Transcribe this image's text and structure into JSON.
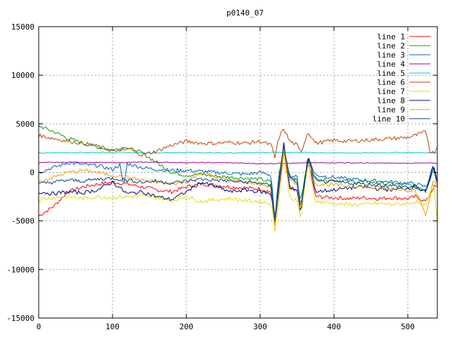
{
  "chart_data": {
    "type": "line",
    "title": "p0140_07",
    "xlabel": "",
    "ylabel": "",
    "xlim": [
      0,
      540
    ],
    "ylim": [
      -15000,
      15000
    ],
    "x_ticks": [
      0,
      100,
      200,
      300,
      400,
      500
    ],
    "y_ticks": [
      -15000,
      -10000,
      -5000,
      0,
      5000,
      10000,
      15000
    ],
    "grid": true,
    "legend_position": "top-right",
    "series": [
      {
        "name": "line 1",
        "color": "#ff0000",
        "x": [
          0,
          20,
          40,
          60,
          80,
          100,
          120,
          140,
          160,
          180,
          200,
          220,
          240,
          260,
          280,
          300,
          315,
          320,
          325,
          332,
          340,
          350,
          355,
          365,
          375,
          400,
          420,
          440,
          460,
          480,
          500,
          510,
          525,
          535,
          540
        ],
        "y": [
          -4500,
          -3500,
          -2000,
          -1500,
          -1200,
          -1000,
          -1200,
          -1500,
          -1800,
          -2000,
          -1500,
          -1200,
          -1300,
          -1500,
          -1600,
          -1700,
          -2000,
          -4500,
          -2000,
          2000,
          -1500,
          -2000,
          -3500,
          1000,
          -2500,
          -2600,
          -2700,
          -2600,
          -2700,
          -2600,
          -2700,
          -2500,
          -3000,
          -1500,
          -1500
        ]
      },
      {
        "name": "line 2",
        "color": "#00a000",
        "x": [
          0,
          20,
          40,
          60,
          80,
          100,
          120,
          140,
          160,
          180,
          200,
          220,
          240,
          260,
          280,
          300,
          315,
          320,
          325,
          332,
          340,
          350,
          355,
          365,
          375,
          400,
          420,
          440,
          460,
          480,
          500,
          510,
          525,
          535,
          540
        ],
        "y": [
          4800,
          4200,
          3500,
          3000,
          2600,
          2300,
          2500,
          2000,
          1000,
          0,
          -300,
          -200,
          -400,
          -500,
          -600,
          -700,
          -1000,
          -4800,
          -800,
          2800,
          -400,
          -900,
          -3000,
          1500,
          -700,
          -800,
          -900,
          -1000,
          -1100,
          -1200,
          -1300,
          -1400,
          -1800,
          500,
          -1000
        ]
      },
      {
        "name": "line 3",
        "color": "#0060c0",
        "x": [
          0,
          20,
          40,
          60,
          80,
          100,
          110,
          115,
          120,
          140,
          160,
          180,
          200,
          220,
          240,
          260,
          280,
          300,
          315,
          320,
          325,
          332,
          340,
          350,
          355,
          365,
          375,
          400,
          420,
          440,
          460,
          480,
          500,
          510,
          525,
          535,
          540
        ],
        "y": [
          0,
          500,
          1000,
          800,
          700,
          300,
          800,
          -1500,
          900,
          500,
          300,
          200,
          200,
          100,
          0,
          -100,
          -200,
          0,
          -300,
          -5000,
          -500,
          2500,
          -300,
          -500,
          -3500,
          1500,
          -300,
          -500,
          -700,
          -800,
          -900,
          -1000,
          -1100,
          -1200,
          -1500,
          800,
          -1000
        ]
      },
      {
        "name": "line 4",
        "color": "#a000a0",
        "x": [
          0,
          50,
          100,
          150,
          200,
          250,
          300,
          350,
          400,
          450,
          500,
          540
        ],
        "y": [
          1000,
          1050,
          1000,
          1050,
          1000,
          1000,
          900,
          950,
          1000,
          950,
          950,
          950
        ]
      },
      {
        "name": "line 5",
        "color": "#00c8c8",
        "x": [
          0,
          50,
          100,
          150,
          200,
          250,
          300,
          350,
          400,
          450,
          500,
          540
        ],
        "y": [
          2000,
          2050,
          2050,
          2000,
          2050,
          2000,
          2050,
          2050,
          2000,
          2000,
          2050,
          2000
        ]
      },
      {
        "name": "line 6",
        "color": "#c04000",
        "x": [
          0,
          20,
          40,
          60,
          80,
          100,
          120,
          140,
          160,
          180,
          200,
          220,
          240,
          260,
          280,
          300,
          315,
          320,
          325,
          332,
          340,
          350,
          355,
          365,
          375,
          400,
          420,
          440,
          460,
          480,
          500,
          510,
          525,
          530,
          535,
          540
        ],
        "y": [
          3800,
          3500,
          3200,
          3000,
          2700,
          2200,
          2500,
          1800,
          2200,
          2800,
          3200,
          3000,
          3000,
          3100,
          3000,
          3200,
          2800,
          1500,
          3500,
          4500,
          3200,
          2800,
          2000,
          4200,
          3000,
          3300,
          3200,
          3300,
          3400,
          3500,
          3600,
          3800,
          4200,
          2200,
          2000,
          2600
        ]
      },
      {
        "name": "line 7",
        "color": "#e0e000",
        "x": [
          0,
          20,
          40,
          60,
          80,
          100,
          120,
          140,
          160,
          180,
          200,
          220,
          240,
          260,
          280,
          300,
          315,
          320,
          325,
          332,
          340,
          350,
          355,
          365,
          375,
          400,
          420,
          440,
          460,
          480,
          500,
          510,
          525,
          535,
          540
        ],
        "y": [
          -2800,
          -2600,
          -2500,
          -2700,
          -2500,
          -2600,
          -2500,
          -2400,
          -2600,
          -2900,
          -2500,
          -3000,
          -2800,
          -2700,
          -2900,
          -3000,
          -3200,
          -6000,
          -3000,
          2000,
          -2500,
          -3000,
          -4800,
          1200,
          -3000,
          -3200,
          -3300,
          -3300,
          -3200,
          -3300,
          -3200,
          -3000,
          -3500,
          -1000,
          -5200
        ]
      },
      {
        "name": "line 8",
        "color": "#000080",
        "x": [
          0,
          20,
          40,
          60,
          80,
          100,
          120,
          140,
          160,
          180,
          200,
          220,
          240,
          260,
          280,
          300,
          315,
          320,
          325,
          332,
          340,
          350,
          355,
          365,
          375,
          400,
          420,
          440,
          460,
          480,
          500,
          510,
          525,
          535,
          540
        ],
        "y": [
          -2000,
          -2200,
          -2000,
          -2100,
          -1800,
          -1000,
          -2200,
          -2000,
          -2500,
          -2800,
          -2000,
          -1000,
          -1500,
          -2000,
          -1800,
          -2000,
          -2200,
          -5200,
          -2000,
          3000,
          -1500,
          -2000,
          -4200,
          1800,
          -2000,
          -1800,
          -1600,
          -1500,
          -1700,
          -1800,
          -1600,
          -1500,
          -2000,
          600,
          -1200
        ]
      },
      {
        "name": "line 9",
        "color": "#f0a000",
        "x": [
          0,
          20,
          40,
          60,
          80,
          100,
          120,
          140,
          160,
          180,
          200,
          220,
          240,
          260,
          280,
          300,
          315,
          320,
          325,
          332,
          340,
          350,
          355,
          365,
          375,
          400,
          420,
          440,
          460,
          480,
          500,
          510,
          525,
          535,
          540
        ],
        "y": [
          -1000,
          -500,
          0,
          200,
          0,
          -300,
          -500,
          -800,
          -1000,
          -1200,
          -1000,
          0,
          -500,
          -800,
          -1000,
          -1200,
          -1500,
          -5500,
          -1500,
          2500,
          -800,
          -1200,
          -4000,
          1200,
          -1200,
          -1300,
          -1400,
          -1500,
          -1600,
          -1700,
          -1800,
          -1800,
          -4500,
          -500,
          -1500
        ]
      },
      {
        "name": "line 10",
        "color": "#004090",
        "x": [
          0,
          20,
          40,
          60,
          80,
          100,
          120,
          140,
          160,
          180,
          200,
          220,
          240,
          260,
          280,
          300,
          315,
          320,
          325,
          332,
          340,
          350,
          355,
          365,
          375,
          400,
          420,
          440,
          460,
          480,
          500,
          510,
          525,
          535,
          540
        ],
        "y": [
          -1200,
          -1000,
          -800,
          -900,
          -700,
          -600,
          -800,
          -1000,
          -900,
          -1100,
          -900,
          -700,
          -800,
          -900,
          -1000,
          -1100,
          -1400,
          -5000,
          -1200,
          2800,
          -600,
          -1000,
          -3800,
          1400,
          -900,
          -1000,
          -1100,
          -1200,
          -1300,
          -1400,
          -1500,
          -1500,
          -2000,
          900,
          -1200
        ]
      }
    ]
  }
}
